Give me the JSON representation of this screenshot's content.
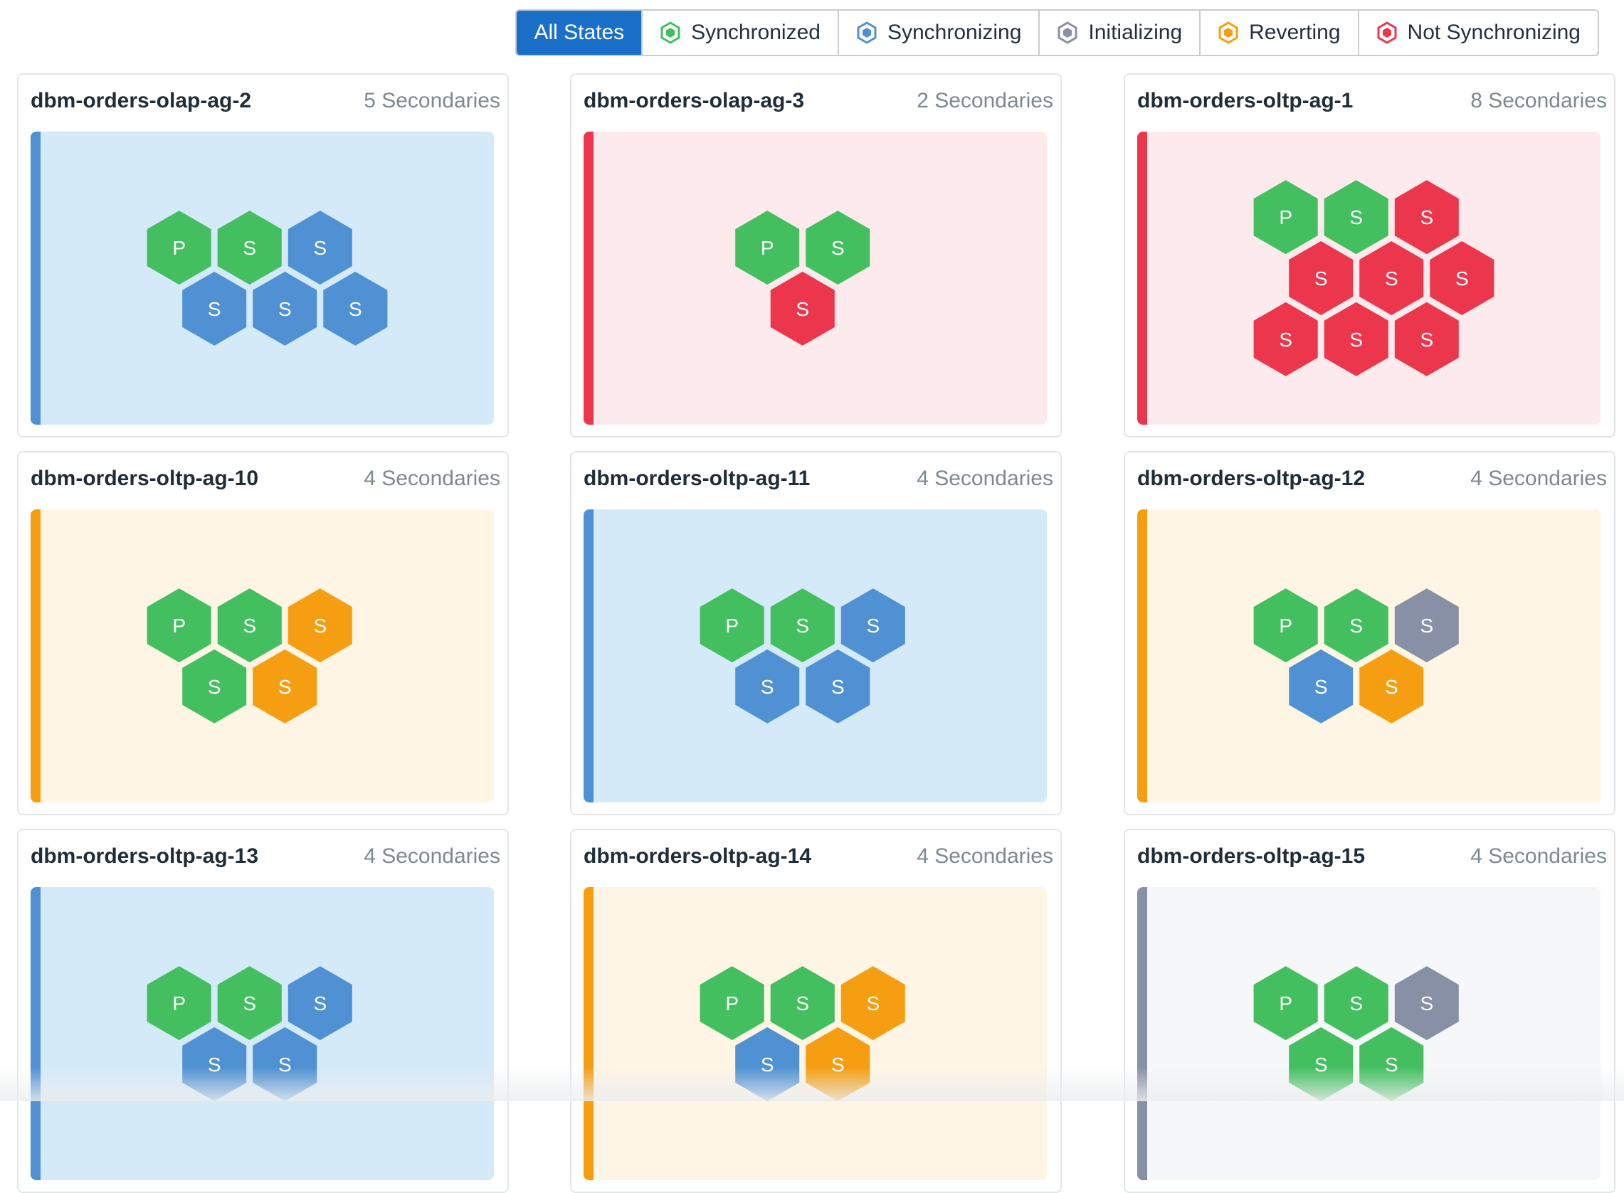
{
  "colors": {
    "synchronized": "#43bf60",
    "synchronizing": "#5091d3",
    "initializing": "#8890a5",
    "reverting": "#f59e12",
    "not_synchronizing": "#eb364c"
  },
  "panel_backgrounds": {
    "synchronizing": "#d5eaf9",
    "not_synchronizing": "#fdeaed",
    "reverting": "#fef5e4",
    "initializing": "#f6f7f9"
  },
  "filters": [
    {
      "label": "All States",
      "state": null,
      "active": true
    },
    {
      "label": "Synchronized",
      "state": "synchronized",
      "icon": "green-hexagon-icon"
    },
    {
      "label": "Synchronizing",
      "state": "synchronizing",
      "icon": "blue-hexagon-icon"
    },
    {
      "label": "Initializing",
      "state": "initializing",
      "icon": "gray-hexagon-icon"
    },
    {
      "label": "Reverting",
      "state": "reverting",
      "icon": "orange-hexagon-icon"
    },
    {
      "label": "Not Synchronizing",
      "state": "not_synchronizing",
      "icon": "red-hexagon-icon"
    }
  ],
  "groups": [
    {
      "name": "dbm-orders-olap-ag-2",
      "secondaries": "5 Secondaries",
      "status": "synchronizing",
      "nodes": [
        {
          "label": "P",
          "state": "synchronized"
        },
        {
          "label": "S",
          "state": "synchronized"
        },
        {
          "label": "S",
          "state": "synchronizing"
        },
        {
          "label": "S",
          "state": "synchronizing"
        },
        {
          "label": "S",
          "state": "synchronizing"
        },
        {
          "label": "S",
          "state": "synchronizing"
        }
      ]
    },
    {
      "name": "dbm-orders-olap-ag-3",
      "secondaries": "2 Secondaries",
      "status": "not_synchronizing",
      "nodes": [
        {
          "label": "P",
          "state": "synchronized"
        },
        {
          "label": "S",
          "state": "synchronized"
        },
        {
          "label": "S",
          "state": "not_synchronizing"
        }
      ]
    },
    {
      "name": "dbm-orders-oltp-ag-1",
      "secondaries": "8 Secondaries",
      "status": "not_synchronizing",
      "nodes": [
        {
          "label": "P",
          "state": "synchronized"
        },
        {
          "label": "S",
          "state": "synchronized"
        },
        {
          "label": "S",
          "state": "not_synchronizing"
        },
        {
          "label": "S",
          "state": "not_synchronizing"
        },
        {
          "label": "S",
          "state": "not_synchronizing"
        },
        {
          "label": "S",
          "state": "not_synchronizing"
        },
        {
          "label": "S",
          "state": "not_synchronizing"
        },
        {
          "label": "S",
          "state": "not_synchronizing"
        },
        {
          "label": "S",
          "state": "not_synchronizing"
        }
      ]
    },
    {
      "name": "dbm-orders-oltp-ag-10",
      "secondaries": "4 Secondaries",
      "status": "reverting",
      "nodes": [
        {
          "label": "P",
          "state": "synchronized"
        },
        {
          "label": "S",
          "state": "synchronized"
        },
        {
          "label": "S",
          "state": "reverting"
        },
        {
          "label": "S",
          "state": "synchronized"
        },
        {
          "label": "S",
          "state": "reverting"
        }
      ]
    },
    {
      "name": "dbm-orders-oltp-ag-11",
      "secondaries": "4 Secondaries",
      "status": "synchronizing",
      "nodes": [
        {
          "label": "P",
          "state": "synchronized"
        },
        {
          "label": "S",
          "state": "synchronized"
        },
        {
          "label": "S",
          "state": "synchronizing"
        },
        {
          "label": "S",
          "state": "synchronizing"
        },
        {
          "label": "S",
          "state": "synchronizing"
        }
      ]
    },
    {
      "name": "dbm-orders-oltp-ag-12",
      "secondaries": "4 Secondaries",
      "status": "reverting",
      "nodes": [
        {
          "label": "P",
          "state": "synchronized"
        },
        {
          "label": "S",
          "state": "synchronized"
        },
        {
          "label": "S",
          "state": "initializing"
        },
        {
          "label": "S",
          "state": "synchronizing"
        },
        {
          "label": "S",
          "state": "reverting"
        }
      ]
    },
    {
      "name": "dbm-orders-oltp-ag-13",
      "secondaries": "4 Secondaries",
      "status": "synchronizing",
      "nodes": [
        {
          "label": "P",
          "state": "synchronized"
        },
        {
          "label": "S",
          "state": "synchronized"
        },
        {
          "label": "S",
          "state": "synchronizing"
        },
        {
          "label": "S",
          "state": "synchronizing"
        },
        {
          "label": "S",
          "state": "synchronizing"
        }
      ]
    },
    {
      "name": "dbm-orders-oltp-ag-14",
      "secondaries": "4 Secondaries",
      "status": "reverting",
      "nodes": [
        {
          "label": "P",
          "state": "synchronized"
        },
        {
          "label": "S",
          "state": "synchronized"
        },
        {
          "label": "S",
          "state": "reverting"
        },
        {
          "label": "S",
          "state": "synchronizing"
        },
        {
          "label": "S",
          "state": "reverting"
        }
      ]
    },
    {
      "name": "dbm-orders-oltp-ag-15",
      "secondaries": "4 Secondaries",
      "status": "initializing",
      "nodes": [
        {
          "label": "P",
          "state": "synchronized"
        },
        {
          "label": "S",
          "state": "synchronized"
        },
        {
          "label": "S",
          "state": "initializing"
        },
        {
          "label": "S",
          "state": "synchronized"
        },
        {
          "label": "S",
          "state": "synchronized"
        }
      ]
    }
  ]
}
